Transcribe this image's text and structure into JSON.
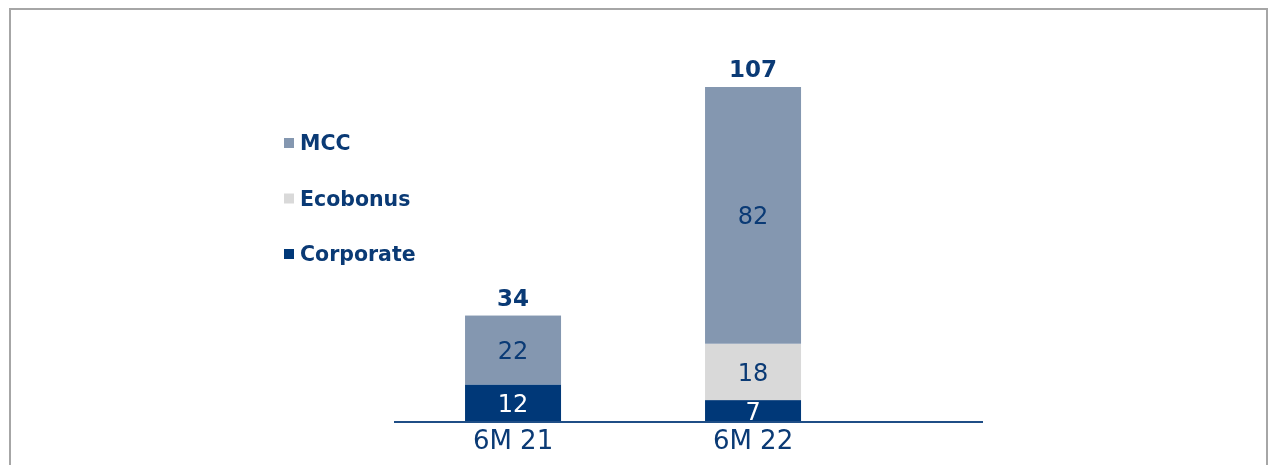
{
  "chart_data": {
    "type": "bar",
    "stacked": true,
    "categories": [
      "6M 21",
      "6M 22"
    ],
    "series": [
      {
        "name": "Corporate",
        "color": "#003878",
        "values": [
          12,
          7
        ]
      },
      {
        "name": "Ecobonus",
        "color": "#d9d9d9",
        "values": [
          null,
          18
        ]
      },
      {
        "name": "MCC",
        "color": "#8497b0",
        "values": [
          22,
          82
        ]
      }
    ],
    "data_labels": true,
    "totals": [
      "34",
      "107"
    ],
    "legend": "left"
  }
}
